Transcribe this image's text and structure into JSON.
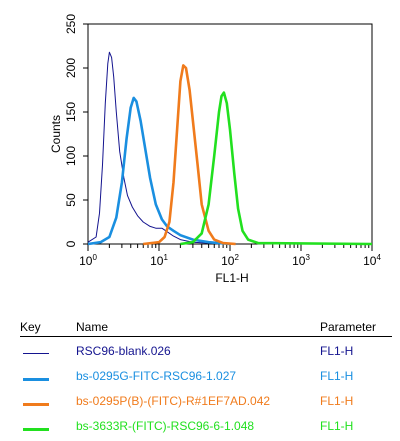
{
  "chart_data": {
    "type": "line",
    "xscale": "log",
    "xlim": [
      1,
      10000
    ],
    "ylim": [
      0,
      250
    ],
    "xlabel": "FL1-H",
    "ylabel": "Counts",
    "x_ticks": [
      {
        "base": "10",
        "exp": "0"
      },
      {
        "base": "10",
        "exp": "1"
      },
      {
        "base": "10",
        "exp": "2"
      },
      {
        "base": "10",
        "exp": "3"
      },
      {
        "base": "10",
        "exp": "4"
      }
    ],
    "y_ticks": [
      "0",
      "50",
      "100",
      "150",
      "200",
      "250"
    ],
    "series": [
      {
        "name": "RSC96-blank.026",
        "color": "#14148f",
        "points": [
          [
            1.0,
            2
          ],
          [
            1.3,
            8
          ],
          [
            1.45,
            35
          ],
          [
            1.6,
            90
          ],
          [
            1.75,
            160
          ],
          [
            1.9,
            205
          ],
          [
            2.0,
            218
          ],
          [
            2.15,
            212
          ],
          [
            2.3,
            190
          ],
          [
            2.5,
            150
          ],
          [
            2.8,
            105
          ],
          [
            3.2,
            75
          ],
          [
            3.6,
            55
          ],
          [
            4.2,
            42
          ],
          [
            5.0,
            32
          ],
          [
            6.0,
            25
          ],
          [
            7.5,
            20
          ],
          [
            9.0,
            18
          ],
          [
            11.0,
            18
          ],
          [
            13.0,
            14
          ],
          [
            16.0,
            9
          ],
          [
            20.0,
            5
          ],
          [
            30.0,
            2
          ],
          [
            50.0,
            1
          ],
          [
            100.0,
            0
          ]
        ]
      },
      {
        "name": "bs-0295G-FITC-RSC96-1.027",
        "color": "#1a8fe0",
        "points": [
          [
            1.0,
            0
          ],
          [
            1.5,
            2
          ],
          [
            2.0,
            8
          ],
          [
            2.5,
            30
          ],
          [
            3.0,
            70
          ],
          [
            3.5,
            120
          ],
          [
            4.0,
            155
          ],
          [
            4.4,
            166
          ],
          [
            4.8,
            162
          ],
          [
            5.5,
            140
          ],
          [
            6.5,
            105
          ],
          [
            7.5,
            75
          ],
          [
            9.0,
            45
          ],
          [
            11.0,
            28
          ],
          [
            13.0,
            20
          ],
          [
            16.0,
            15
          ],
          [
            20.0,
            10
          ],
          [
            30.0,
            5
          ],
          [
            50.0,
            2
          ],
          [
            100.0,
            0
          ]
        ]
      },
      {
        "name": "bs-0295P(B)-(FITC)-R#1EF7AD.042",
        "color": "#f07b1c",
        "points": [
          [
            6.0,
            0
          ],
          [
            10.0,
            2
          ],
          [
            12.0,
            8
          ],
          [
            14.0,
            25
          ],
          [
            16.0,
            70
          ],
          [
            18.0,
            130
          ],
          [
            20.0,
            185
          ],
          [
            22.0,
            203
          ],
          [
            24.0,
            200
          ],
          [
            27.0,
            175
          ],
          [
            30.0,
            140
          ],
          [
            35.0,
            90
          ],
          [
            40.0,
            45
          ],
          [
            50.0,
            15
          ],
          [
            60.0,
            5
          ],
          [
            80.0,
            1
          ],
          [
            120.0,
            0
          ]
        ]
      },
      {
        "name": "bs-3633R-(FITC)-RSC96-6-1.048",
        "color": "#22e01f",
        "points": [
          [
            20.0,
            0
          ],
          [
            30.0,
            2
          ],
          [
            40.0,
            12
          ],
          [
            50.0,
            45
          ],
          [
            60.0,
            100
          ],
          [
            70.0,
            150
          ],
          [
            76.0,
            168
          ],
          [
            82.0,
            172
          ],
          [
            90.0,
            160
          ],
          [
            100.0,
            130
          ],
          [
            115.0,
            80
          ],
          [
            130.0,
            40
          ],
          [
            150.0,
            15
          ],
          [
            180.0,
            5
          ],
          [
            250.0,
            1
          ],
          [
            10000.0,
            0
          ]
        ]
      }
    ]
  },
  "legend": {
    "header": {
      "key": "Key",
      "name": "Name",
      "parameter": "Parameter"
    },
    "rows": [
      {
        "name": "RSC96-blank.026",
        "parameter": "FL1-H",
        "color": "#14148f",
        "weight": "thin"
      },
      {
        "name": "bs-0295G-FITC-RSC96-1.027",
        "parameter": "FL1-H",
        "color": "#1a8fe0",
        "weight": "thick"
      },
      {
        "name": "bs-0295P(B)-(FITC)-R#1EF7AD.042",
        "parameter": "FL1-H",
        "color": "#f07b1c",
        "weight": "thick"
      },
      {
        "name": "bs-3633R-(FITC)-RSC96-6-1.048",
        "parameter": "FL1-H",
        "color": "#22e01f",
        "weight": "thick"
      }
    ]
  }
}
